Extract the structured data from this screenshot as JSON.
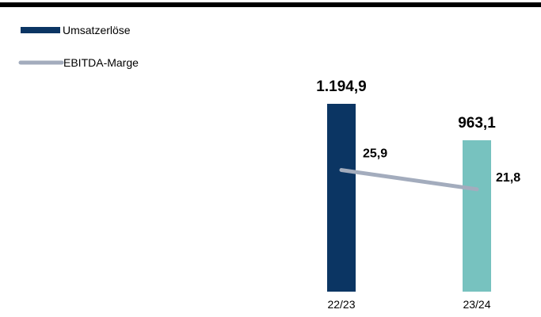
{
  "chart_data": {
    "type": "bar",
    "categories": [
      "22/23",
      "23/24"
    ],
    "series": [
      {
        "name": "Umsatzerlöse",
        "kind": "bar",
        "values": [
          1194.9,
          963.1
        ],
        "labels": [
          "1.194,9",
          "963,1"
        ],
        "colors": [
          "#0b3563",
          "#77c2bf"
        ]
      },
      {
        "name": "EBITDA-Marge",
        "kind": "line",
        "values": [
          25.9,
          21.8
        ],
        "labels": [
          "25,9",
          "21,8"
        ],
        "color": "#a3acbd"
      }
    ],
    "legend": "top-left",
    "grid": false,
    "ylim": [
      0,
      1194.9
    ],
    "line_ylim": [
      0,
      40
    ]
  },
  "colors": {
    "top_rule": "#000000",
    "axis": "#c9c9c9"
  }
}
